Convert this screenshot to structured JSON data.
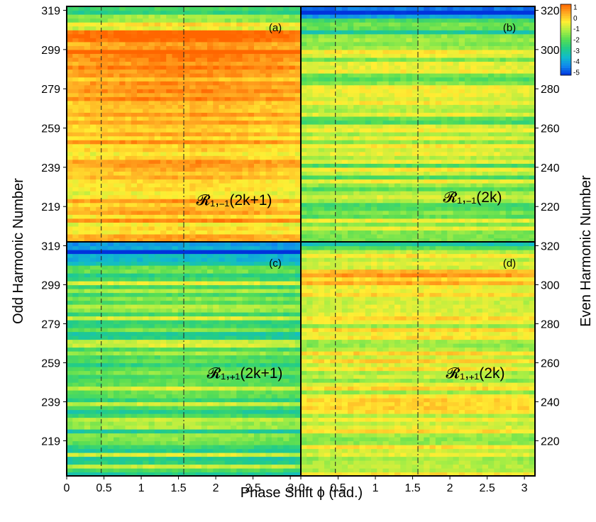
{
  "chart_data": {
    "type": "heatmap",
    "xlabel": "Phase Shift ϕ (rad.)",
    "ylabel_left": "Odd Harmonic Number",
    "ylabel_right": "Even Harmonic Number",
    "x_range": [
      0,
      3.14159
    ],
    "x_ticks": [
      0,
      0.5,
      1,
      1.5,
      2,
      2.5,
      3
    ],
    "x_tick_labels": [
      "0",
      "0.5",
      "1",
      "1.5",
      "2",
      "2.5",
      "3"
    ],
    "reference_lines": [
      {
        "x": 0.4636,
        "style": "dashed"
      },
      {
        "x": 1.5708,
        "style": "dash-dot"
      }
    ],
    "colorbar": {
      "range": [
        -5,
        1
      ],
      "tick_labels": [
        "1",
        "0",
        "-1",
        "-2",
        "-3",
        "-4",
        "-5"
      ],
      "colors": [
        "#ff6600",
        "#ffaa22",
        "#ffee33",
        "#aaee44",
        "#55dd55",
        "#22cc88",
        "#11bbcc",
        "#1188ee",
        "#0033dd"
      ]
    },
    "panels": [
      {
        "id": "a",
        "label": "(a)",
        "formula": "𝓡₁,₋₁(2k+1)",
        "harmonics": "odd",
        "y_range": [
          201,
          321
        ],
        "y_ticks": [
          219,
          239,
          259,
          279,
          299,
          319
        ],
        "y_tick_labels": [
          "219",
          "239",
          "259",
          "279",
          "299",
          "319"
        ],
        "z_bands": [
          {
            "from": 317,
            "to": 321,
            "z": -2.2
          },
          {
            "from": 308,
            "to": 317,
            "z": -1.0
          },
          {
            "from": 294,
            "to": 308,
            "z": 0.7
          },
          {
            "from": 260,
            "to": 294,
            "z": 0.1
          },
          {
            "from": 201,
            "to": 260,
            "z": -0.2
          }
        ],
        "z_trend_along_x": 0.3,
        "z_stripe_amplitude": 0.7
      },
      {
        "id": "b",
        "label": "(b)",
        "formula": "𝓡₁,₋₁(2k)",
        "harmonics": "even",
        "y_range": [
          202,
          322
        ],
        "y_ticks": [
          220,
          240,
          260,
          280,
          300,
          320
        ],
        "y_tick_labels": [
          "220",
          "240",
          "260",
          "280",
          "300",
          "320"
        ],
        "z_bands": [
          {
            "from": 316,
            "to": 322,
            "z": -4.5
          },
          {
            "from": 305,
            "to": 316,
            "z": -2.4
          },
          {
            "from": 292,
            "to": 305,
            "z": -1.1
          },
          {
            "from": 202,
            "to": 292,
            "z": -1.5
          }
        ],
        "z_trend_along_x": 0.2,
        "z_stripe_amplitude": 0.9
      },
      {
        "id": "c",
        "label": "(c)",
        "formula": "𝓡₁,₊₁(2k+1)",
        "harmonics": "odd",
        "y_range": [
          201,
          321
        ],
        "y_ticks": [
          219,
          239,
          259,
          279,
          299,
          319
        ],
        "y_tick_labels": [
          "219",
          "239",
          "259",
          "279",
          "299",
          "319"
        ],
        "z_bands": [
          {
            "from": 314,
            "to": 321,
            "z": -4.6
          },
          {
            "from": 301,
            "to": 314,
            "z": -2.8
          },
          {
            "from": 289,
            "to": 301,
            "z": -1.6
          },
          {
            "from": 201,
            "to": 289,
            "z": -2.1
          }
        ],
        "z_trend_along_x": 0.3,
        "z_stripe_amplitude": 1.1
      },
      {
        "id": "d",
        "label": "(d)",
        "formula": "𝓡₁,₊₁(2k)",
        "harmonics": "even",
        "y_range": [
          202,
          322
        ],
        "y_ticks": [
          220,
          240,
          260,
          280,
          300,
          320
        ],
        "y_tick_labels": [
          "220",
          "240",
          "260",
          "280",
          "300",
          "320"
        ],
        "z_bands": [
          {
            "from": 317,
            "to": 322,
            "z": -2.6
          },
          {
            "from": 307,
            "to": 317,
            "z": -1.2
          },
          {
            "from": 293,
            "to": 307,
            "z": -0.3
          },
          {
            "from": 202,
            "to": 293,
            "z": -1.0
          }
        ],
        "z_trend_along_x": 0.2,
        "z_stripe_amplitude": 0.7
      }
    ]
  }
}
